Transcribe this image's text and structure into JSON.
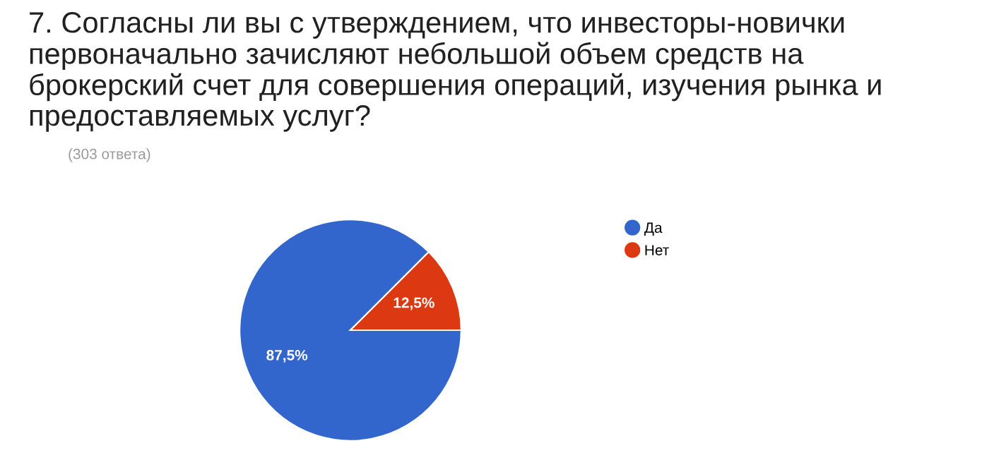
{
  "chart_data": {
    "type": "pie",
    "title": "7. Согласны ли вы с утверждением, что инвесторы-новички первоначально зачисляют небольшой объем средств на брокерский счет для совершения операций, изучения рынка и предоставляемых услуг?",
    "subtitle": "(303 ответа)",
    "categories": [
      "Да",
      "Нет"
    ],
    "values": [
      87.5,
      12.5
    ],
    "colors": [
      "#3366cc",
      "#dc3912"
    ],
    "value_labels": [
      "87,5%",
      "12,5%"
    ],
    "legend": "right"
  }
}
